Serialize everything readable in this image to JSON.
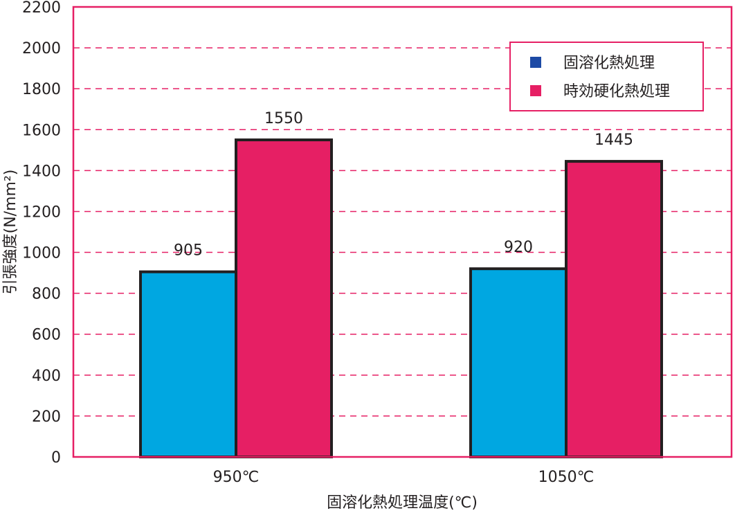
{
  "chart_data": {
    "type": "bar",
    "categories": [
      "950℃",
      "1050℃"
    ],
    "series": [
      {
        "name": "固溶化熱処理",
        "values": [
          905,
          920
        ],
        "color": "#00a7e1",
        "legend_color": "#1d4aa5"
      },
      {
        "name": "時効硬化熱処理",
        "values": [
          1550,
          1445
        ],
        "color": "#e61f64",
        "legend_color": "#e61f64"
      }
    ],
    "xlabel": "固溶化熱処理温度(℃)",
    "ylabel": "引張強度(N/mm²)",
    "ylim": [
      0,
      2200
    ],
    "yticks": [
      0,
      200,
      400,
      600,
      800,
      1000,
      1200,
      1400,
      1600,
      1800,
      2000,
      2200
    ],
    "grid": true,
    "legend_position": "top-right",
    "frame_color": "#e61f64",
    "grid_color": "#e61f64",
    "bar_edge_color": "#231f20"
  }
}
